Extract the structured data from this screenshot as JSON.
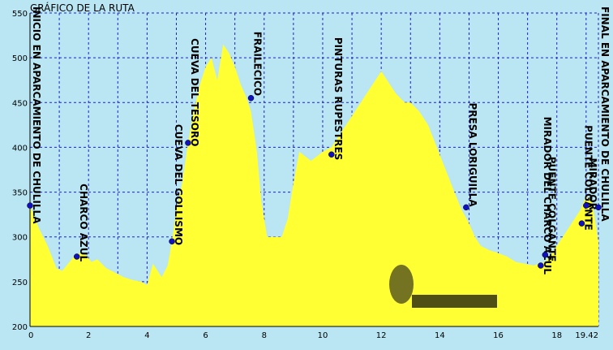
{
  "chart_data": {
    "type": "area",
    "title": "GRÁFICO DE LA RUTA",
    "xlim": [
      0,
      19.42
    ],
    "ylim": [
      200,
      550
    ],
    "x_ticks": [
      0,
      2,
      4,
      6,
      8,
      10,
      12,
      14,
      16,
      18,
      19.42
    ],
    "x_tick_labels": [
      "0",
      "2",
      "4",
      "6",
      "8",
      "10",
      "12",
      "14",
      "16",
      "18",
      "19.42"
    ],
    "y_ticks": [
      200,
      250,
      300,
      350,
      400,
      450,
      500,
      550
    ],
    "grid": true,
    "colors": {
      "fill": "#ffff33",
      "background": "#b9e6f2",
      "grid": "#2020d0",
      "marker": "#1010c0"
    },
    "profile": {
      "x": [
        0,
        0.3,
        0.6,
        0.9,
        1.1,
        1.3,
        1.5,
        1.7,
        1.9,
        2.1,
        2.3,
        2.6,
        2.9,
        3.2,
        3.5,
        3.8,
        4.0,
        4.2,
        4.5,
        4.7,
        4.85,
        5.0,
        5.2,
        5.4,
        5.6,
        5.8,
        6.0,
        6.2,
        6.4,
        6.6,
        6.8,
        7.0,
        7.2,
        7.4,
        7.55,
        7.75,
        7.9,
        8.1,
        8.3,
        8.6,
        8.8,
        9.0,
        9.2,
        9.4,
        9.6,
        9.8,
        10.0,
        10.3,
        10.6,
        10.9,
        11.2,
        11.5,
        11.8,
        12.0,
        12.2,
        12.5,
        12.8,
        13.0,
        13.3,
        13.6,
        13.9,
        14.2,
        14.5,
        14.75,
        15.0,
        15.2,
        15.4,
        15.7,
        16.0,
        16.3,
        16.6,
        16.9,
        17.2,
        17.4,
        17.6,
        17.8,
        18.0,
        18.2,
        18.4,
        18.6,
        18.8,
        19.0,
        19.2,
        19.42
      ],
      "y": [
        335,
        310,
        290,
        265,
        262,
        270,
        278,
        282,
        280,
        272,
        275,
        265,
        260,
        255,
        252,
        250,
        246,
        270,
        255,
        268,
        295,
        330,
        360,
        405,
        440,
        470,
        490,
        500,
        475,
        515,
        505,
        490,
        470,
        455,
        440,
        395,
        340,
        300,
        300,
        300,
        320,
        360,
        395,
        390,
        385,
        390,
        395,
        400,
        415,
        430,
        445,
        460,
        475,
        485,
        475,
        460,
        450,
        450,
        440,
        425,
        400,
        375,
        350,
        330,
        315,
        300,
        290,
        285,
        282,
        278,
        272,
        270,
        268,
        270,
        272,
        280,
        290,
        300,
        310,
        320,
        330,
        345,
        340,
        295
      ]
    },
    "waypoints": [
      {
        "name": "INICIO EN APARCAMIENTO DE CHULILLA",
        "x": 0,
        "y": 335
      },
      {
        "name": "CHARCO AZUL",
        "x": 1.6,
        "y": 278
      },
      {
        "name": "CUEVA DEL GOLLISMO",
        "x": 4.85,
        "y": 295
      },
      {
        "name": "CUEVA DEL TESORO",
        "x": 5.4,
        "y": 405
      },
      {
        "name": "FRAILECICO",
        "x": 7.55,
        "y": 455
      },
      {
        "name": "PINTURAS RUPESTRES",
        "x": 10.3,
        "y": 392
      },
      {
        "name": "PRESA LORIGUILLA",
        "x": 14.9,
        "y": 333
      },
      {
        "name": "MIRADOR DEL CHARCO AZUL",
        "x": 17.45,
        "y": 268
      },
      {
        "name": "PUENTE COLGANTE",
        "x": 17.6,
        "y": 280
      },
      {
        "name": "PUENTE COLGANTE",
        "x": 18.85,
        "y": 315
      },
      {
        "name": "MIRADOR",
        "x": 19.0,
        "y": 335
      },
      {
        "name": "FINAL EN APARCAMIENTO DE CHULILLA",
        "x": 19.42,
        "y": 333
      }
    ]
  }
}
